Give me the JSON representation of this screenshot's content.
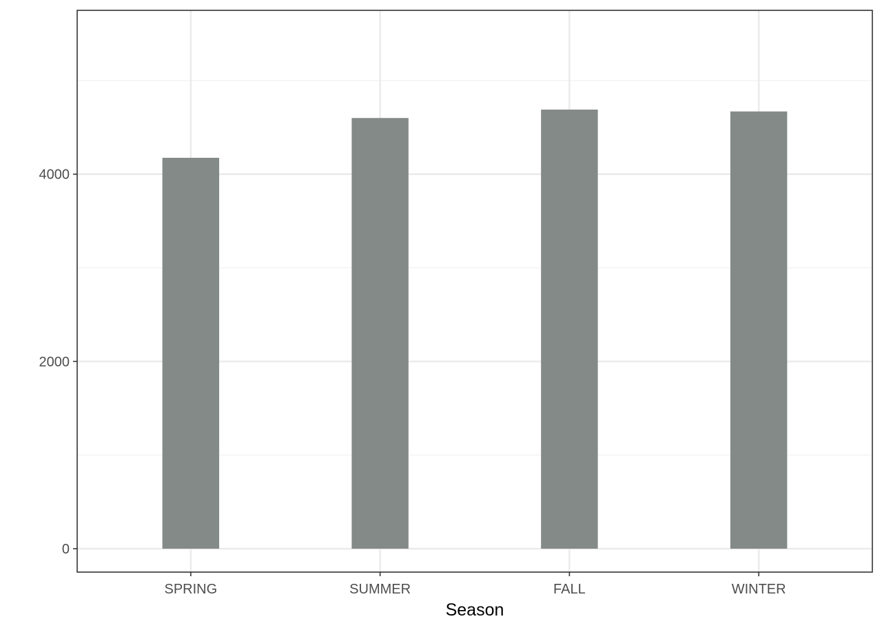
{
  "chart_data": {
    "type": "bar",
    "title": "",
    "xlabel": "Season",
    "ylabel": "",
    "categories": [
      "SPRING",
      "SUMMER",
      "FALL",
      "WINTER"
    ],
    "values": [
      4175,
      4600,
      4690,
      4670
    ],
    "ylim": [
      -250,
      5750
    ],
    "y_ticks": [
      0,
      2000,
      4000
    ],
    "y_tick_labels": [
      "0",
      "2000",
      "4000"
    ],
    "grid": true,
    "legend": "none",
    "colors": {
      "bar": "#838a87",
      "panel_border": "#333333",
      "grid_major": "#ebebeb",
      "grid_minor": "#f2f2f2",
      "tick_text": "#4d4d4d",
      "axis_title": "#000000",
      "background": "#ffffff"
    }
  }
}
